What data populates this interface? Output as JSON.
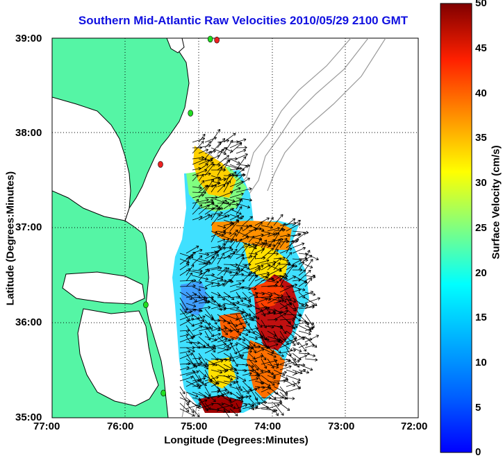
{
  "title": "Southern Mid-Atlantic Raw Velocities 2010/05/29 2100 GMT",
  "xlabel": "Longitude (Degrees:Minutes)",
  "ylabel": "Latitude (Degrees:Minutes)",
  "colorbar_label": "Surface Velocity (cm/s)",
  "x_ticks": [
    "77:00",
    "76:00",
    "75:00",
    "74:00",
    "73:00",
    "72:00"
  ],
  "y_ticks": [
    "39:00",
    "38:00",
    "37:00",
    "36:00",
    "35:00"
  ],
  "colorbar_ticks": [
    "50",
    "45",
    "40",
    "35",
    "30",
    "25",
    "20",
    "15",
    "10",
    "5",
    "0"
  ],
  "colors": {
    "title": "#1010e0",
    "land": "#55f5a5",
    "land_outline": "#000000",
    "bathymetry": "#9a9a9a",
    "grid": "#000000",
    "station_green": "#22dd22",
    "station_red": "#ee2222"
  },
  "colormap": "jet",
  "map_extent": {
    "lon": [
      -77,
      -72
    ],
    "lat": [
      35,
      39
    ]
  },
  "clim": [
    0,
    50
  ],
  "stations": [
    {
      "lon": -74.75,
      "lat": 38.98,
      "color": "red"
    },
    {
      "lon": -74.84,
      "lat": 38.99,
      "color": "green"
    },
    {
      "lon": -75.11,
      "lat": 38.21,
      "color": "green"
    },
    {
      "lon": -75.52,
      "lat": 37.67,
      "color": "red"
    },
    {
      "lon": -75.72,
      "lat": 36.19,
      "color": "green"
    },
    {
      "lon": -75.48,
      "lat": 35.26,
      "color": "green"
    }
  ]
}
